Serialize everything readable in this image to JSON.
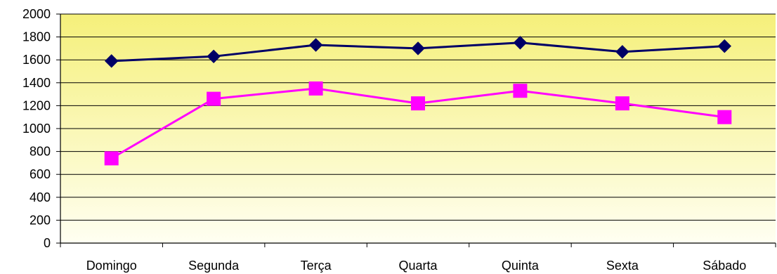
{
  "chart_data": {
    "type": "line",
    "title": "",
    "xlabel": "",
    "ylabel": "",
    "categories": [
      "Domingo",
      "Segunda",
      "Terça",
      "Quarta",
      "Quinta",
      "Sexta",
      "Sábado"
    ],
    "ylim": [
      0,
      2000
    ],
    "yticks": [
      0,
      200,
      400,
      600,
      800,
      1000,
      1200,
      1400,
      1600,
      1800,
      2000
    ],
    "grid": true,
    "legend": "none",
    "background": {
      "top": "#f5f07a",
      "bottom": "#fffff2"
    },
    "series": [
      {
        "values": [
          1590,
          1630,
          1730,
          1700,
          1750,
          1670,
          1720
        ],
        "color": "#000066",
        "marker": "diamond"
      },
      {
        "values": [
          740,
          1260,
          1350,
          1220,
          1330,
          1220,
          1100
        ],
        "color": "#ff00ff",
        "marker": "square"
      }
    ]
  }
}
